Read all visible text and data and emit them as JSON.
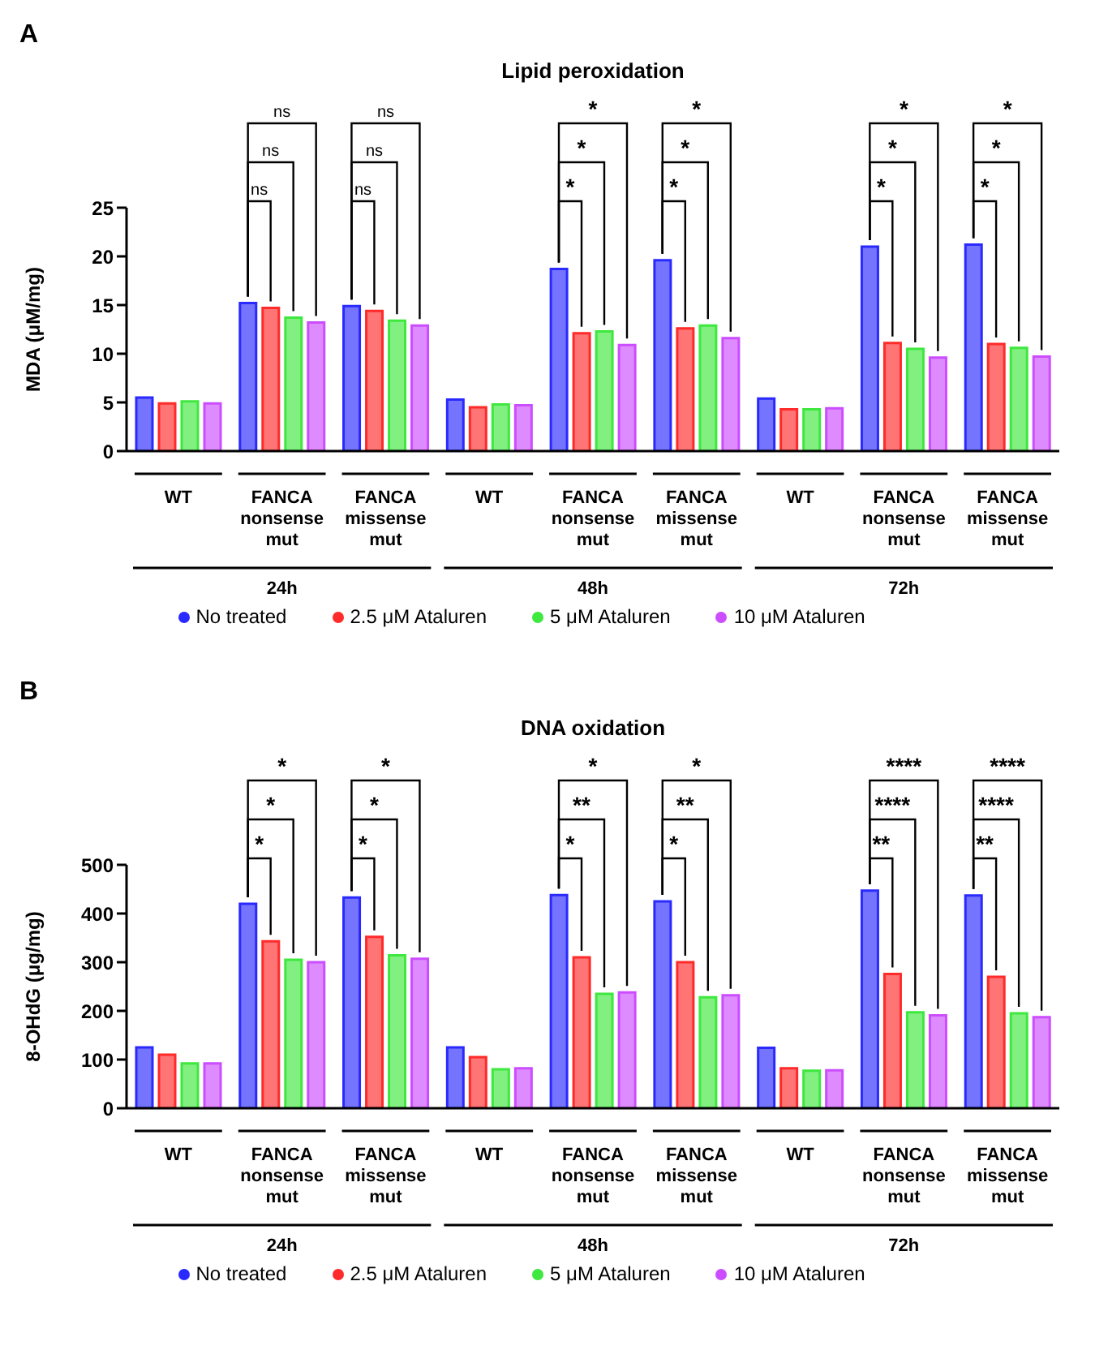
{
  "chart_data": [
    {
      "type": "bar",
      "title": "Lipid peroxidation",
      "ylabel": "MDA (μM/mg)",
      "categories": [
        "WT",
        "FANCA nonsense mut",
        "FANCA missense mut",
        "WT",
        "FANCA nonsense mut",
        "FANCA missense mut",
        "WT",
        "FANCA nonsense mut",
        "FANCA missense mut"
      ],
      "series": [
        {
          "name": "No treated",
          "color": "#2a2aff",
          "values": [
            5.5,
            15.2,
            14.9,
            5.3,
            18.7,
            19.6,
            5.4,
            21.0,
            21.2
          ]
        },
        {
          "name": "2.5 μM Ataluren",
          "color": "#ff2a2a",
          "values": [
            4.9,
            14.7,
            14.4,
            4.5,
            12.1,
            12.6,
            4.3,
            11.1,
            11.0
          ]
        },
        {
          "name": "5 μM Ataluren",
          "color": "#3ee83e",
          "values": [
            5.1,
            13.7,
            13.4,
            4.8,
            12.3,
            12.9,
            4.3,
            10.5,
            10.6
          ]
        },
        {
          "name": "10 μM Ataluren",
          "color": "#cc4dff",
          "values": [
            4.9,
            13.2,
            12.9,
            4.7,
            10.9,
            11.6,
            4.4,
            9.6,
            9.7
          ]
        }
      ],
      "ylim": [
        0,
        25
      ],
      "yticks": [
        0,
        5,
        10,
        15,
        20,
        25
      ],
      "legend": "bottom",
      "annotations": [
        "A",
        "24h",
        "48h",
        "72h",
        "ns",
        "ns",
        "ns",
        "ns",
        "ns",
        "ns",
        "*",
        "*",
        "*",
        "*",
        "*",
        "*",
        "*",
        "*",
        "*",
        "*",
        "*",
        "*"
      ]
    },
    {
      "type": "bar",
      "title": "DNA oxidation",
      "ylabel": "8-OHdG (μg/mg)",
      "categories": [
        "WT",
        "FANCA nonsense mut",
        "FANCA missense mut",
        "WT",
        "FANCA nonsense mut",
        "FANCA missense mut",
        "WT",
        "FANCA nonsense mut",
        "FANCA missense mut"
      ],
      "series": [
        {
          "name": "No treated",
          "color": "#2a2aff",
          "values": [
            125,
            420,
            433,
            125,
            438,
            425,
            124,
            447,
            437
          ]
        },
        {
          "name": "2.5 μM Ataluren",
          "color": "#ff2a2a",
          "values": [
            110,
            343,
            352,
            105,
            310,
            300,
            82,
            276,
            270
          ]
        },
        {
          "name": "5 μM Ataluren",
          "color": "#3ee83e",
          "values": [
            92,
            305,
            314,
            80,
            235,
            228,
            77,
            197,
            195
          ]
        },
        {
          "name": "10 μM Ataluren",
          "color": "#cc4dff",
          "values": [
            92,
            300,
            307,
            82,
            238,
            232,
            78,
            191,
            187
          ]
        }
      ],
      "ylim": [
        0,
        500
      ],
      "yticks": [
        0,
        100,
        200,
        300,
        400,
        500
      ],
      "legend": "bottom",
      "annotations": [
        "B",
        "24h",
        "48h",
        "72h",
        "*",
        "*",
        "*",
        "*",
        "*",
        "*",
        "*",
        "**",
        "*",
        "*",
        "**",
        "*",
        "**",
        "****",
        "****",
        "**",
        "****",
        "****"
      ]
    }
  ]
}
